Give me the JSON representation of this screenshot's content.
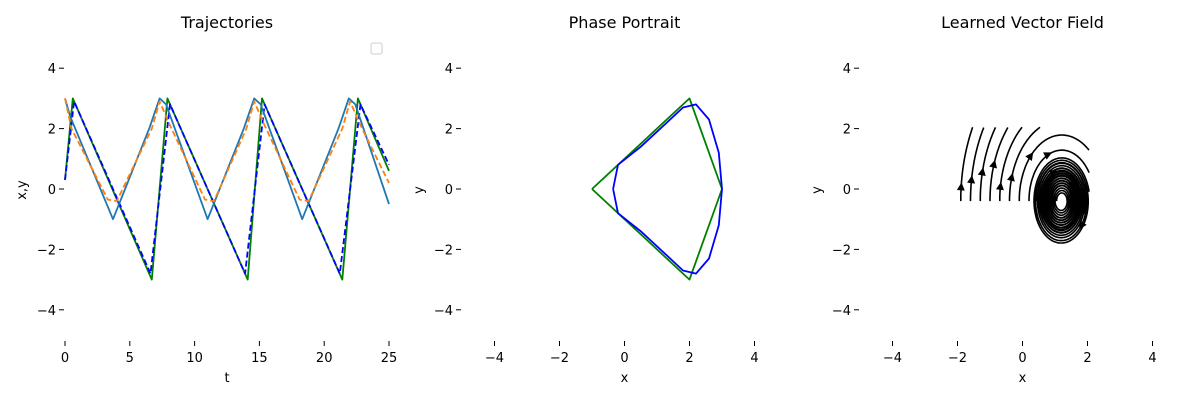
{
  "chart_data": [
    {
      "type": "line",
      "title": "Trajectories",
      "xlabel": "t",
      "ylabel": "x,y",
      "xlim": [
        0,
        25
      ],
      "ylim": [
        -5,
        5
      ],
      "xticks": [
        "0",
        "5",
        "10",
        "15",
        "20",
        "25"
      ],
      "yticks": [
        "4",
        "2",
        "0",
        "−2",
        "−4"
      ],
      "legend": "top-right (empty)",
      "series": [
        {
          "color": "#008000",
          "style": "solid",
          "points": [
            [
              0,
              0.3
            ],
            [
              0.6,
              3.0
            ],
            [
              6.7,
              -3.0
            ],
            [
              7.9,
              3.0
            ],
            [
              14.1,
              -3.0
            ],
            [
              15.2,
              3.0
            ],
            [
              21.4,
              -3.0
            ],
            [
              22.6,
              3.0
            ],
            [
              25,
              0.6
            ]
          ]
        },
        {
          "color": "#0000ff",
          "style": "dashed",
          "points": [
            [
              0,
              0.3
            ],
            [
              0.7,
              2.9
            ],
            [
              6.6,
              -2.8
            ],
            [
              8.1,
              2.8
            ],
            [
              13.9,
              -2.8
            ],
            [
              15.4,
              2.8
            ],
            [
              21.2,
              -2.8
            ],
            [
              22.8,
              2.8
            ],
            [
              25,
              0.8
            ]
          ]
        },
        {
          "color": "#1f77b4",
          "style": "solid",
          "points": [
            [
              0,
              3.0
            ],
            [
              0.4,
              2.4
            ],
            [
              3.7,
              -1.0
            ],
            [
              6.5,
              2.0
            ],
            [
              7.3,
              3.0
            ],
            [
              7.8,
              2.8
            ],
            [
              11.0,
              -1.0
            ],
            [
              13.8,
              2.0
            ],
            [
              14.6,
              3.0
            ],
            [
              15.1,
              2.8
            ],
            [
              18.3,
              -1.0
            ],
            [
              21.1,
              2.0
            ],
            [
              21.9,
              3.0
            ],
            [
              22.4,
              2.8
            ],
            [
              25,
              -0.5
            ]
          ]
        },
        {
          "color": "#ff7f0e",
          "style": "dashed",
          "points": [
            [
              0,
              3.0
            ],
            [
              0.5,
              2.0
            ],
            [
              3.3,
              -0.35
            ],
            [
              4.0,
              -0.4
            ],
            [
              6.7,
              2.0
            ],
            [
              7.3,
              2.9
            ],
            [
              8.0,
              2.2
            ],
            [
              10.8,
              -0.35
            ],
            [
              11.5,
              -0.4
            ],
            [
              14.0,
              2.0
            ],
            [
              14.6,
              2.9
            ],
            [
              15.3,
              2.2
            ],
            [
              18.1,
              -0.35
            ],
            [
              18.8,
              -0.4
            ],
            [
              21.4,
              2.0
            ],
            [
              22.0,
              2.9
            ],
            [
              22.7,
              2.2
            ],
            [
              25,
              0.2
            ]
          ]
        }
      ]
    },
    {
      "type": "line",
      "title": "Phase Portrait",
      "xlabel": "x",
      "ylabel": "y",
      "xlim": [
        -5,
        5
      ],
      "ylim": [
        -5,
        5
      ],
      "xticks": [
        "−4",
        "−2",
        "0",
        "2",
        "4"
      ],
      "yticks": [
        "4",
        "2",
        "0",
        "−2",
        "−4"
      ],
      "series": [
        {
          "color": "#008000",
          "style": "solid",
          "points": [
            [
              -1,
              0
            ],
            [
              2,
              3
            ],
            [
              3,
              0
            ],
            [
              2,
              -3
            ],
            [
              -1,
              0
            ]
          ]
        },
        {
          "color": "#0000ff",
          "style": "solid",
          "points": [
            [
              -0.35,
              0
            ],
            [
              -0.2,
              0.8
            ],
            [
              0.5,
              1.4
            ],
            [
              1.3,
              2.2
            ],
            [
              1.8,
              2.7
            ],
            [
              2.2,
              2.8
            ],
            [
              2.6,
              2.3
            ],
            [
              2.9,
              1.2
            ],
            [
              3.0,
              0
            ],
            [
              2.9,
              -1.2
            ],
            [
              2.6,
              -2.3
            ],
            [
              2.2,
              -2.8
            ],
            [
              1.8,
              -2.7
            ],
            [
              1.3,
              -2.2
            ],
            [
              0.5,
              -1.4
            ],
            [
              -0.2,
              -0.8
            ],
            [
              -0.35,
              0
            ]
          ]
        }
      ]
    },
    {
      "type": "streamplot",
      "title": "Learned Vector Field",
      "xlabel": "x",
      "ylabel": "y",
      "xlim": [
        -5,
        5
      ],
      "ylim": [
        -5,
        5
      ],
      "xticks": [
        "−4",
        "−2",
        "0",
        "2",
        "4"
      ],
      "yticks": [
        "4",
        "2",
        "0",
        "−2",
        "−4"
      ],
      "field_domain": [
        [
          -2,
          2
        ],
        [
          -2,
          2
        ]
      ],
      "center": [
        1.2,
        -0.4
      ],
      "color": "#000000"
    }
  ]
}
